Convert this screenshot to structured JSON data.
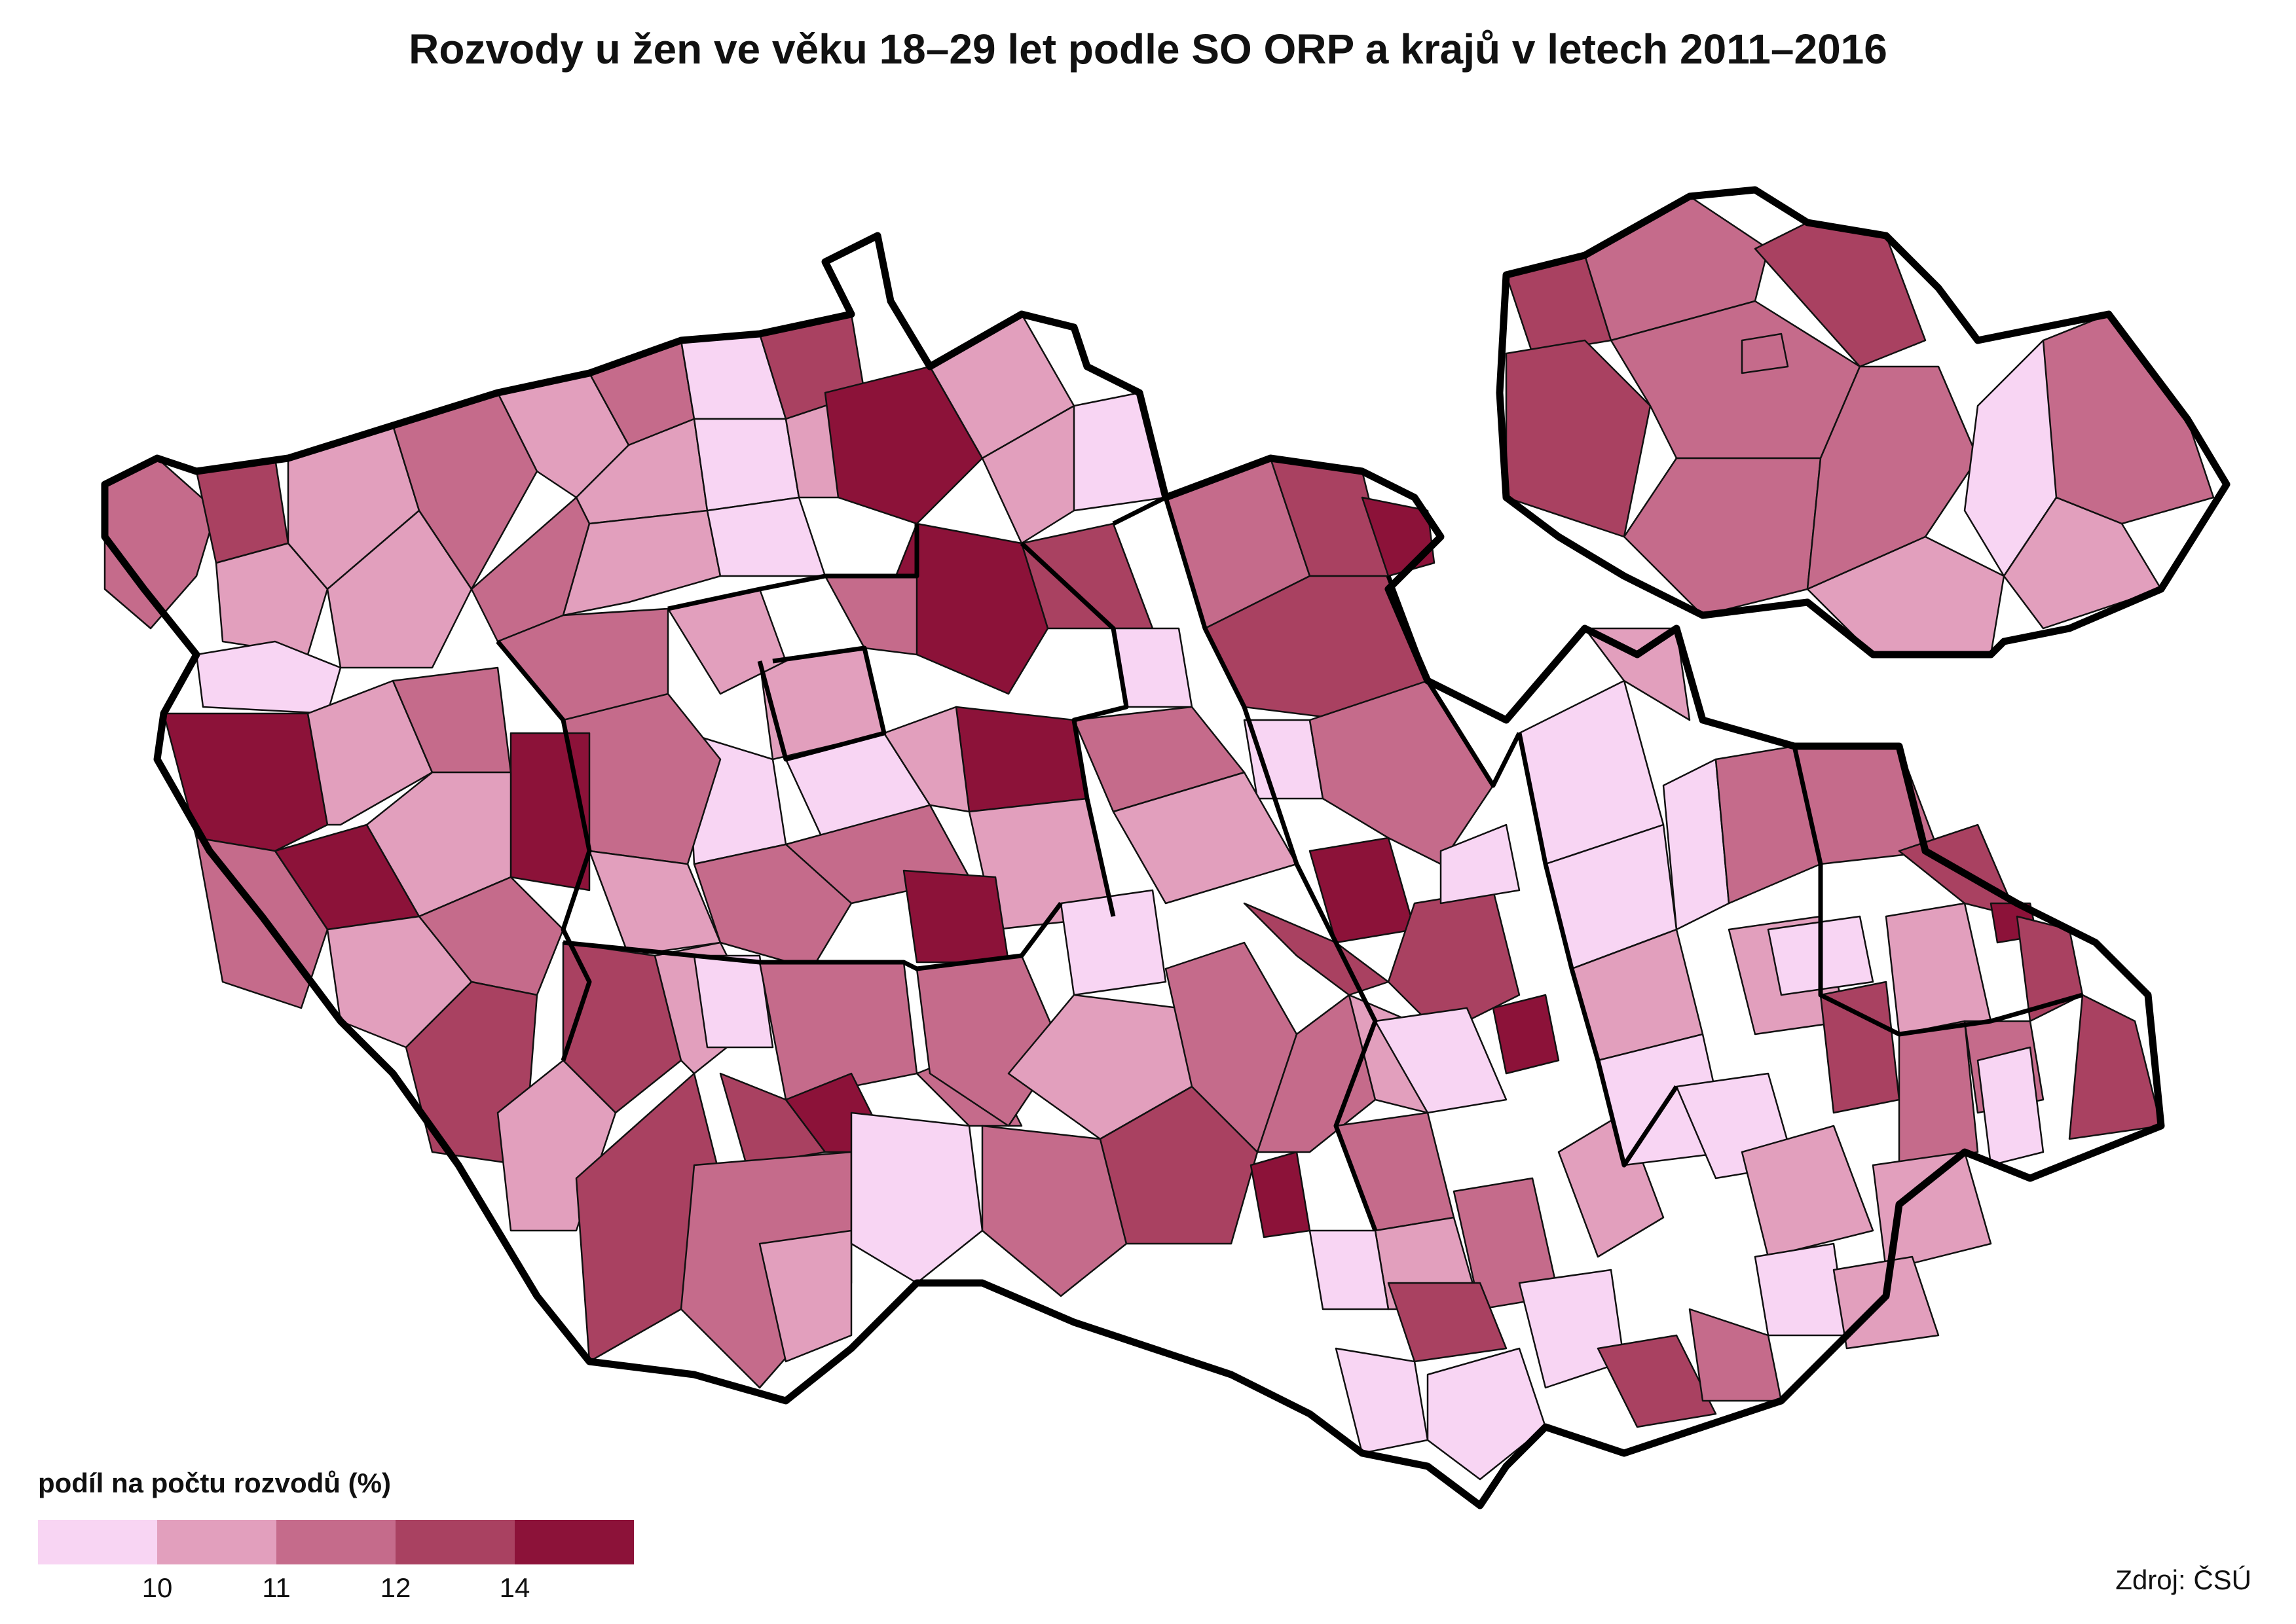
{
  "title": "Rozvody u žen ve věku 18–29 let podle SO ORP a krajů v letech 2011–2016",
  "legend": {
    "title": "podíl na počtu rozvodů (%)",
    "colors": [
      "#f8d5f3",
      "#e29fbd",
      "#c56b8b",
      "#a94161",
      "#8c1239"
    ],
    "thresholds": [
      "10",
      "11",
      "12",
      "14"
    ]
  },
  "source": "Zdroj: ČSÚ"
}
